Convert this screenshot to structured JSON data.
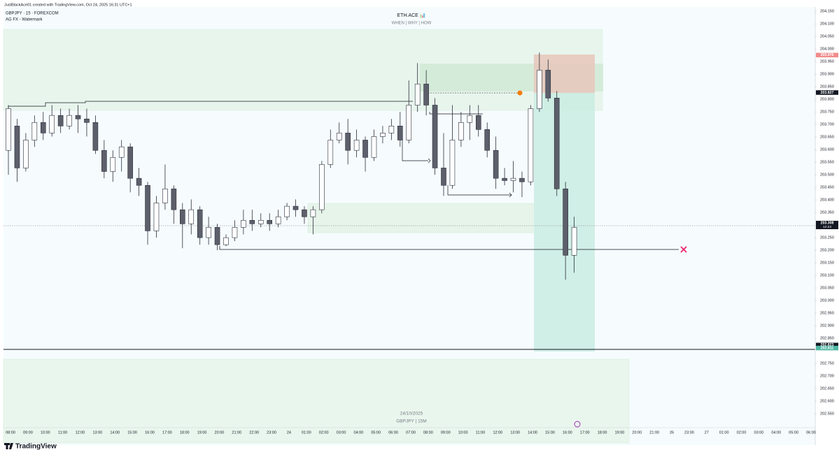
{
  "chart_data": {
    "type": "candlestick",
    "attribution": "JustBlackAce01 created with TradingView.com, Oct 24, 2025 16:31 UTC+1",
    "symbol": "GBPJPY · 15 · FOREXCOM",
    "indicator": "AG FX - Watermark",
    "title": "ETH.ACE 📊",
    "subtitle": "WHEN | WHY | HOW",
    "watermark_date": "24/10/2025",
    "watermark_symbol": "GBPJPY | 15M",
    "logo": "TradingView",
    "up_color": "#ffffff",
    "down_color": "#5d606b",
    "border_color": "#2a2e39",
    "grid": false,
    "ylim": [
      202.425,
      204.195
    ],
    "yticks": [
      {
        "value": 204.15,
        "label": "204.150"
      },
      {
        "value": 204.1,
        "label": "204.100"
      },
      {
        "value": 204.05,
        "label": "204.050"
      },
      {
        "value": 204.0,
        "label": "204.000"
      },
      {
        "value": 203.95,
        "label": "203.950"
      },
      {
        "value": 203.9,
        "label": "203.900"
      },
      {
        "value": 203.85,
        "label": "203.850"
      },
      {
        "value": 203.8,
        "label": "203.800"
      },
      {
        "value": 203.75,
        "label": "203.750"
      },
      {
        "value": 203.7,
        "label": "203.700"
      },
      {
        "value": 203.65,
        "label": "203.650"
      },
      {
        "value": 203.6,
        "label": "203.600"
      },
      {
        "value": 203.55,
        "label": "203.550"
      },
      {
        "value": 203.5,
        "label": "203.500"
      },
      {
        "value": 203.45,
        "label": "203.450"
      },
      {
        "value": 203.4,
        "label": "203.400"
      },
      {
        "value": 203.35,
        "label": "203.350"
      },
      {
        "value": 203.25,
        "label": "203.250"
      },
      {
        "value": 203.2,
        "label": "203.200"
      },
      {
        "value": 203.15,
        "label": "203.150"
      },
      {
        "value": 203.1,
        "label": "203.100"
      },
      {
        "value": 203.05,
        "label": "203.050"
      },
      {
        "value": 203.0,
        "label": "203.000"
      },
      {
        "value": 202.95,
        "label": "202.950"
      },
      {
        "value": 202.9,
        "label": "202.900"
      },
      {
        "value": 202.85,
        "label": "202.850"
      },
      {
        "value": 202.75,
        "label": "202.750"
      },
      {
        "value": 202.7,
        "label": "202.700"
      },
      {
        "value": 202.65,
        "label": "202.650"
      },
      {
        "value": 202.6,
        "label": "202.600"
      },
      {
        "value": 202.55,
        "label": "202.550"
      }
    ],
    "price_markers": [
      {
        "value": 203.976,
        "color": "#f28b8b"
      },
      {
        "value": 203.827,
        "color": "#131722"
      },
      {
        "value": 203.308,
        "color": "#131722",
        "countdown": "12:23"
      },
      {
        "value": 202.823,
        "color": "#131722"
      },
      {
        "value": 202.811,
        "color": "#4fb8a4"
      }
    ],
    "x_labels": [
      "08:00",
      "09:00",
      "10:00",
      "11:00",
      "12:00",
      "13:00",
      "14:00",
      "15:00",
      "16:00",
      "17:00",
      "18:00",
      "19:00",
      "20:00",
      "21:00",
      "22:00",
      "23:00",
      "24",
      "01:00",
      "02:00",
      "03:00",
      "04:00",
      "05:00",
      "06:00",
      "07:00",
      "08:00",
      "09:00",
      "10:00",
      "11:00",
      "12:00",
      "13:00",
      "14:00",
      "15:00",
      "16:00",
      "17:00",
      "18:00",
      "19:00",
      "20:00",
      "21:00",
      "26",
      "23:00",
      "27",
      "01:00",
      "02:00",
      "03:00",
      "04:00",
      "05:00",
      "06:00"
    ],
    "candles": [
      [
        203.597,
        203.777,
        203.5,
        203.763
      ],
      [
        203.694,
        203.722,
        203.472,
        203.527
      ],
      [
        203.527,
        203.666,
        203.513,
        203.638
      ],
      [
        203.638,
        203.736,
        203.611,
        203.708
      ],
      [
        203.708,
        203.75,
        203.638,
        203.666
      ],
      [
        203.666,
        203.777,
        203.652,
        203.736
      ],
      [
        203.736,
        203.763,
        203.666,
        203.694
      ],
      [
        203.694,
        203.763,
        203.68,
        203.736
      ],
      [
        203.736,
        203.777,
        203.666,
        203.722
      ],
      [
        203.722,
        203.763,
        203.652,
        203.708
      ],
      [
        203.708,
        203.736,
        203.583,
        203.597
      ],
      [
        203.597,
        203.638,
        203.486,
        203.513
      ],
      [
        203.513,
        203.597,
        203.472,
        203.569
      ],
      [
        203.569,
        203.638,
        203.513,
        203.611
      ],
      [
        203.611,
        203.625,
        203.43,
        203.486
      ],
      [
        203.486,
        203.527,
        203.416,
        203.458
      ],
      [
        203.458,
        203.472,
        203.222,
        203.277
      ],
      [
        203.277,
        203.416,
        203.25,
        203.388
      ],
      [
        203.388,
        203.541,
        203.361,
        203.444
      ],
      [
        203.444,
        203.458,
        203.305,
        203.361
      ],
      [
        203.361,
        203.388,
        203.208,
        203.305
      ],
      [
        203.305,
        203.402,
        203.263,
        203.361
      ],
      [
        203.361,
        203.375,
        203.222,
        203.25
      ],
      [
        203.25,
        203.333,
        203.222,
        203.291
      ],
      [
        203.291,
        203.305,
        203.2,
        203.222
      ],
      [
        203.222,
        203.263,
        203.216,
        203.25
      ],
      [
        203.25,
        203.319,
        203.236,
        203.291
      ],
      [
        203.291,
        203.361,
        203.263,
        203.319
      ],
      [
        203.319,
        203.361,
        203.277,
        203.305
      ],
      [
        203.305,
        203.347,
        203.291,
        203.319
      ],
      [
        203.319,
        203.347,
        203.277,
        203.305
      ],
      [
        203.305,
        203.361,
        203.291,
        203.333
      ],
      [
        203.333,
        203.388,
        203.319,
        203.375
      ],
      [
        203.375,
        203.402,
        203.333,
        203.361
      ],
      [
        203.361,
        203.375,
        203.305,
        203.333
      ],
      [
        203.333,
        203.375,
        203.263,
        203.361
      ],
      [
        203.361,
        203.555,
        203.347,
        203.541
      ],
      [
        203.541,
        203.68,
        203.527,
        203.638
      ],
      [
        203.638,
        203.708,
        203.625,
        203.666
      ],
      [
        203.666,
        203.722,
        203.541,
        203.597
      ],
      [
        203.597,
        203.68,
        203.569,
        203.638
      ],
      [
        203.638,
        203.652,
        203.513,
        203.569
      ],
      [
        203.569,
        203.68,
        203.555,
        203.652
      ],
      [
        203.652,
        203.694,
        203.625,
        203.666
      ],
      [
        203.666,
        203.722,
        203.638,
        203.694
      ],
      [
        203.694,
        203.75,
        203.611,
        203.638
      ],
      [
        203.638,
        203.875,
        203.625,
        203.777
      ],
      [
        203.777,
        203.944,
        203.75,
        203.861
      ],
      [
        203.861,
        203.916,
        203.736,
        203.777
      ],
      [
        203.777,
        203.805,
        203.5,
        203.527
      ],
      [
        203.527,
        203.666,
        203.416,
        203.458
      ],
      [
        203.458,
        203.777,
        203.444,
        203.638
      ],
      [
        203.638,
        203.75,
        203.611,
        203.708
      ],
      [
        203.708,
        203.777,
        203.638,
        203.736
      ],
      [
        203.736,
        203.777,
        203.652,
        203.68
      ],
      [
        203.68,
        203.708,
        203.569,
        203.597
      ],
      [
        203.597,
        203.652,
        203.444,
        203.486
      ],
      [
        203.486,
        203.527,
        203.458,
        203.477
      ],
      [
        203.477,
        203.555,
        203.43,
        203.486
      ],
      [
        203.486,
        203.513,
        203.411,
        203.472
      ],
      [
        203.472,
        203.777,
        203.458,
        203.763
      ],
      [
        203.763,
        203.986,
        203.75,
        203.916
      ],
      [
        203.916,
        203.958,
        203.791,
        203.805
      ],
      [
        203.805,
        203.833,
        203.416,
        203.444
      ],
      [
        203.444,
        203.472,
        203.083,
        203.18
      ],
      [
        203.18,
        203.333,
        203.111,
        203.291
      ]
    ]
  }
}
